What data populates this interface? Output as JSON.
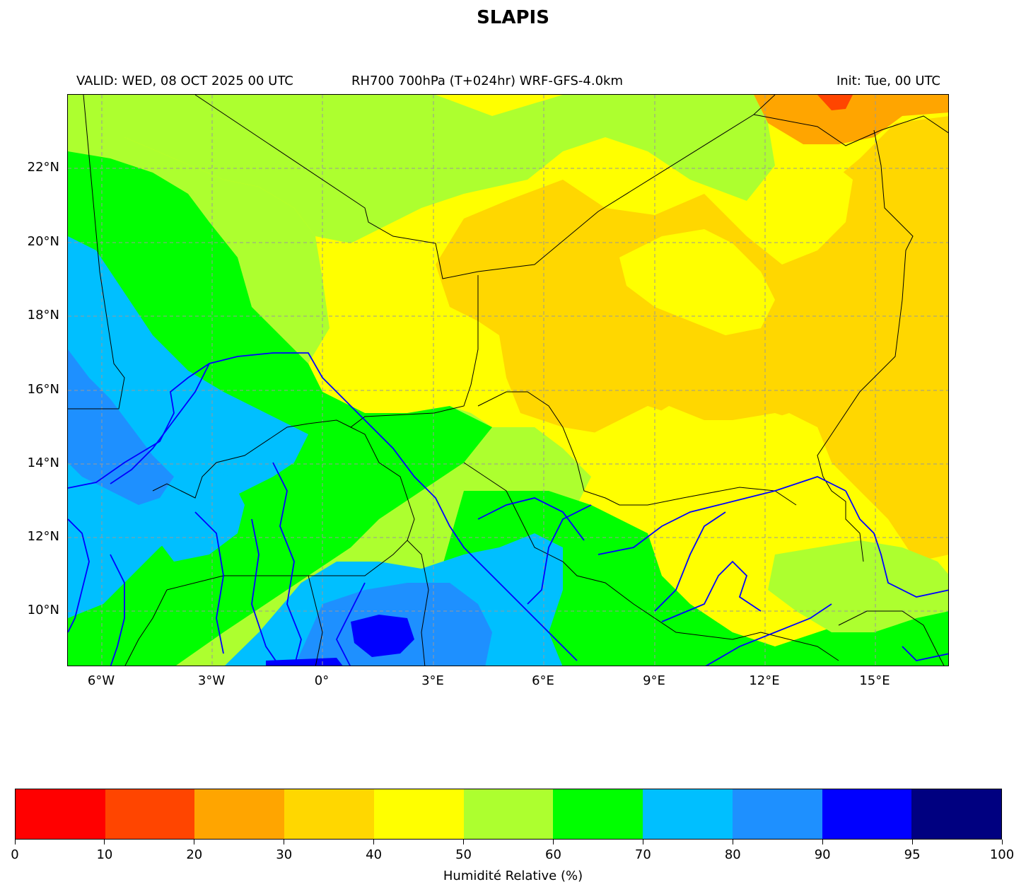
{
  "title": "SLAPIS",
  "subtitle": {
    "valid": "VALID: WED, 08 OCT 2025 00 UTC",
    "field": "RH700 700hPa (T+024hr) WRF-GFS-4.0km",
    "init": "Init: Tue, 00 UTC"
  },
  "map": {
    "lat_labels": [
      "22°N",
      "20°N",
      "18°N",
      "16°N",
      "14°N",
      "12°N",
      "10°N"
    ],
    "lon_labels": [
      "6°W",
      "3°W",
      "0°",
      "3°E",
      "6°E",
      "9°E",
      "12°E",
      "15°E"
    ],
    "colors": {
      "rh_20_30": "#ffa500",
      "rh_30_40": "#ffd700",
      "rh_40_50": "#ffff00",
      "rh_50_60": "#adff2f",
      "rh_60_70": "#00ff00",
      "rh_70_80": "#00bfff",
      "rh_80_90": "#1e90ff",
      "rh_90_95": "#0000ff",
      "rivers": "#0000ff",
      "borders": "#000000"
    }
  },
  "colorbar": {
    "label": "Humidité Relative (%)",
    "ticks": [
      "0",
      "10",
      "20",
      "30",
      "40",
      "50",
      "60",
      "70",
      "80",
      "90",
      "95",
      "100"
    ],
    "colors": [
      "#ff0000",
      "#ff4500",
      "#ffa500",
      "#ffd700",
      "#ffff00",
      "#adff2f",
      "#00ff00",
      "#00bfff",
      "#1e90ff",
      "#0000ff",
      "#000080"
    ]
  }
}
